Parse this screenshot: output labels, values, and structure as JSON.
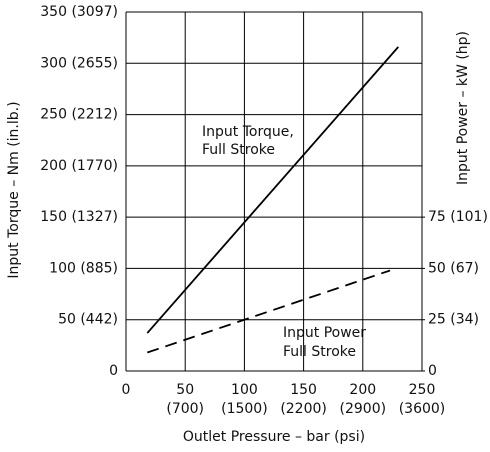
{
  "chart_data": {
    "type": "line",
    "xlabel": "Outlet Pressure – bar (psi)",
    "ylabel": "Input Torque – Nm (in.lb.)",
    "y2label": "Input Power – kW (hp)",
    "xlim": [
      0,
      250
    ],
    "xticks": [
      0,
      50,
      100,
      150,
      200,
      250
    ],
    "x_secondary_tick_labels": [
      "(700)",
      "(1500)",
      "(2200)",
      "(2900)",
      "(3600)"
    ],
    "ylim": [
      0,
      350
    ],
    "yticks": [
      0,
      {
        "value": 50,
        "label": "50 (442)"
      },
      {
        "value": 100,
        "label": "100 (885)"
      },
      {
        "value": 150,
        "label": "150 (1327)"
      },
      {
        "value": 200,
        "label": "200 (1770)"
      },
      {
        "value": 250,
        "label": "250 (2212)"
      },
      {
        "value": 300,
        "label": "300 (2655)"
      },
      {
        "value": 350,
        "label": "350 (3097)"
      }
    ],
    "y2lim": [
      0,
      175
    ],
    "y2ticks": [
      0,
      {
        "value": 25,
        "label": "25 (34)"
      },
      {
        "value": 50,
        "label": "50 (67)"
      },
      {
        "value": 75,
        "label": "75 (101)"
      }
    ],
    "grid": true,
    "series": [
      {
        "name": "Input Torque",
        "color": "#000000",
        "dashed": false,
        "x": [
          18,
          230
        ],
        "values": [
          37,
          316
        ]
      },
      {
        "name": "Input Power",
        "color": "#000000",
        "dashed": true,
        "axis": "y2",
        "x": [
          18,
          223
        ],
        "values": [
          9,
          49
        ]
      }
    ],
    "annotations": [
      "Input Torque,",
      "Full Stroke",
      "Input Power",
      "Full Stroke"
    ]
  }
}
